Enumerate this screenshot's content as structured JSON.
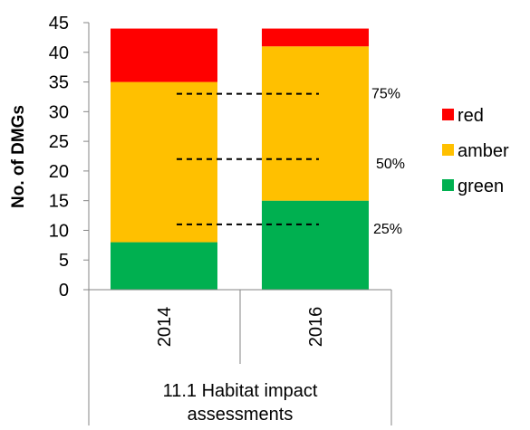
{
  "chart_data": {
    "type": "bar",
    "stacked": true,
    "categories": [
      "2014",
      "2016"
    ],
    "group_label": "11.1 Habitat impact assessments",
    "group_label_lines": [
      "11.1 Habitat impact",
      "assessments"
    ],
    "series": [
      {
        "name": "green",
        "color": "#00B050",
        "values": [
          8,
          15
        ]
      },
      {
        "name": "amber",
        "color": "#FFC000",
        "values": [
          27,
          26
        ]
      },
      {
        "name": "red",
        "color": "#FF0000",
        "values": [
          9,
          3
        ]
      }
    ],
    "ylabel": "No. of DMGs",
    "ylim": [
      0,
      45
    ],
    "yticks": [
      0,
      5,
      10,
      15,
      20,
      25,
      30,
      35,
      40,
      45
    ],
    "reference_lines": [
      {
        "label": "25%",
        "value": 11
      },
      {
        "label": "50%",
        "value": 22
      },
      {
        "label": "75%",
        "value": 33
      }
    ],
    "legend": {
      "placement": "right",
      "order": [
        "red",
        "amber",
        "green"
      ]
    },
    "grid": false
  }
}
